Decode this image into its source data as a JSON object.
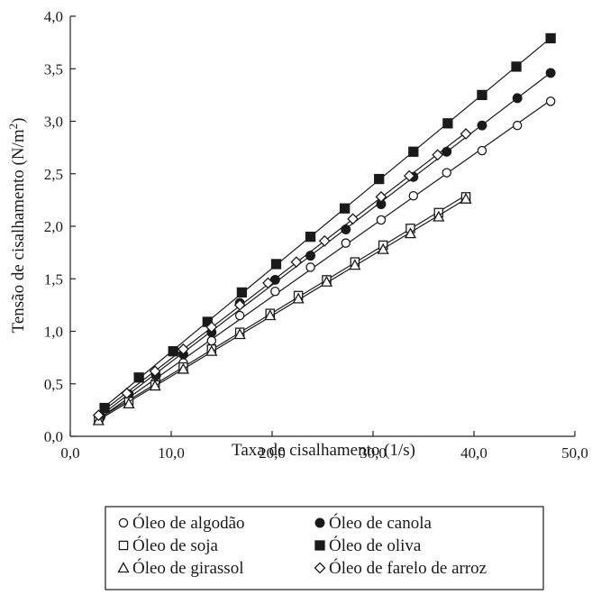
{
  "chart_data": {
    "type": "scatter",
    "title": "",
    "xlabel": "Taxa de cisalhamento (1/s)",
    "ylabel": "Tensão de cisalhamento (N/m²)",
    "xlim": [
      0,
      50
    ],
    "ylim": [
      0,
      4
    ],
    "xticks": [
      "0,0",
      "10,0",
      "20,0",
      "30,0",
      "40,0",
      "50,0"
    ],
    "yticks": [
      "0,0",
      "0,5",
      "1,0",
      "1,5",
      "2,0",
      "2,5",
      "3,0",
      "3,5",
      "4,0"
    ],
    "grid": false,
    "legend_position": "bottom",
    "series": [
      {
        "name": "Óleo de algodão",
        "marker": "circle-open",
        "points": [
          [
            3.0,
            0.18
          ],
          [
            5.8,
            0.36
          ],
          [
            8.5,
            0.53
          ],
          [
            11.2,
            0.7
          ],
          [
            14.0,
            0.91
          ],
          [
            16.8,
            1.15
          ],
          [
            20.3,
            1.38
          ],
          [
            23.8,
            1.61
          ],
          [
            27.3,
            1.84
          ],
          [
            30.8,
            2.06
          ],
          [
            34.0,
            2.29
          ],
          [
            37.3,
            2.51
          ],
          [
            40.8,
            2.72
          ],
          [
            44.3,
            2.96
          ],
          [
            47.6,
            3.19
          ]
        ]
      },
      {
        "name": "Óleo de canola",
        "marker": "circle-filled",
        "points": [
          [
            3.0,
            0.19
          ],
          [
            5.8,
            0.4
          ],
          [
            8.5,
            0.58
          ],
          [
            11.2,
            0.78
          ],
          [
            14.0,
            0.99
          ],
          [
            16.8,
            1.27
          ],
          [
            20.3,
            1.49
          ],
          [
            23.8,
            1.72
          ],
          [
            27.3,
            1.97
          ],
          [
            30.8,
            2.21
          ],
          [
            34.0,
            2.47
          ],
          [
            37.3,
            2.71
          ],
          [
            40.8,
            2.96
          ],
          [
            44.3,
            3.22
          ],
          [
            47.6,
            3.46
          ]
        ]
      },
      {
        "name": "Óleo de soja",
        "marker": "square-open",
        "points": [
          [
            2.8,
            0.17
          ],
          [
            5.8,
            0.33
          ],
          [
            8.4,
            0.49
          ],
          [
            11.2,
            0.66
          ],
          [
            14.0,
            0.83
          ],
          [
            16.8,
            0.99
          ],
          [
            19.8,
            1.17
          ],
          [
            22.6,
            1.34
          ],
          [
            25.4,
            1.49
          ],
          [
            28.2,
            1.66
          ],
          [
            31.0,
            1.82
          ],
          [
            33.7,
            1.98
          ],
          [
            36.5,
            2.13
          ],
          [
            39.2,
            2.28
          ]
        ]
      },
      {
        "name": "Óleo de oliva",
        "marker": "square-filled",
        "points": [
          [
            3.4,
            0.27
          ],
          [
            6.8,
            0.56
          ],
          [
            10.2,
            0.81
          ],
          [
            13.6,
            1.09
          ],
          [
            17.0,
            1.37
          ],
          [
            20.4,
            1.64
          ],
          [
            23.8,
            1.9
          ],
          [
            27.2,
            2.17
          ],
          [
            30.6,
            2.45
          ],
          [
            34.0,
            2.71
          ],
          [
            37.4,
            2.98
          ],
          [
            40.8,
            3.25
          ],
          [
            44.2,
            3.52
          ],
          [
            47.6,
            3.79
          ]
        ]
      },
      {
        "name": "Óleo de girassol",
        "marker": "triangle-open",
        "points": [
          [
            2.8,
            0.15
          ],
          [
            5.8,
            0.31
          ],
          [
            8.4,
            0.48
          ],
          [
            11.2,
            0.64
          ],
          [
            14.0,
            0.81
          ],
          [
            16.8,
            0.97
          ],
          [
            19.8,
            1.15
          ],
          [
            22.6,
            1.31
          ],
          [
            25.4,
            1.47
          ],
          [
            28.2,
            1.63
          ],
          [
            31.0,
            1.78
          ],
          [
            33.7,
            1.93
          ],
          [
            36.5,
            2.09
          ],
          [
            39.2,
            2.26
          ]
        ]
      },
      {
        "name": "Óleo de farelo de arroz",
        "marker": "diamond-open",
        "points": [
          [
            2.8,
            0.2
          ],
          [
            5.6,
            0.41
          ],
          [
            8.4,
            0.62
          ],
          [
            11.2,
            0.83
          ],
          [
            14.0,
            1.04
          ],
          [
            16.8,
            1.25
          ],
          [
            19.6,
            1.46
          ],
          [
            22.4,
            1.66
          ],
          [
            25.2,
            1.86
          ],
          [
            28.0,
            2.07
          ],
          [
            30.8,
            2.28
          ],
          [
            33.6,
            2.48
          ],
          [
            36.4,
            2.68
          ],
          [
            39.2,
            2.88
          ]
        ]
      }
    ]
  }
}
